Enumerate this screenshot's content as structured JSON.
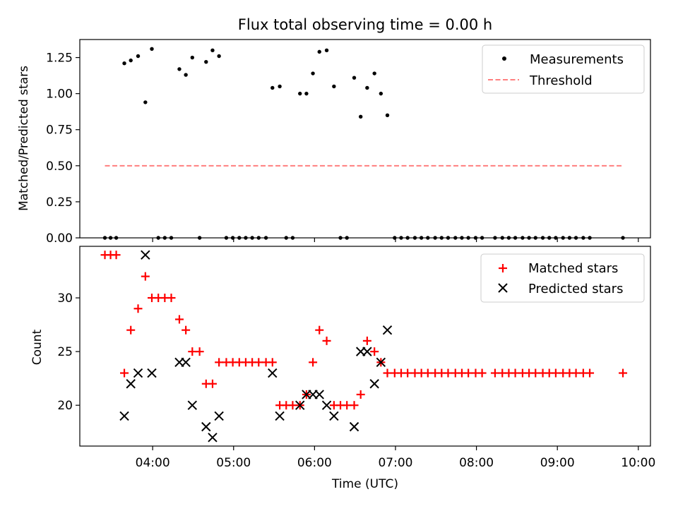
{
  "chart_data": [
    {
      "type": "scatter",
      "title": "Flux total observing time = 0.00 h",
      "ylabel": "Matched/Predicted stars",
      "xlabel": "",
      "ylim": [
        0,
        1.375
      ],
      "xlim": [
        3.1,
        10.15
      ],
      "x_ticks": [
        4,
        5,
        6,
        7,
        8,
        9,
        10
      ],
      "y_ticks": [
        0,
        0.25,
        0.5,
        0.75,
        1.0,
        1.25
      ],
      "y_tick_labels": [
        "0.00",
        "0.25",
        "0.50",
        "0.75",
        "1.00",
        "1.25"
      ],
      "grid": false,
      "legend": "top-right",
      "series": [
        {
          "name": "Measurements",
          "marker": "dot",
          "color": "#000000",
          "x": [
            3.41,
            3.48,
            3.55,
            3.65,
            3.73,
            3.82,
            3.91,
            3.99,
            4.07,
            4.15,
            4.23,
            4.33,
            4.41,
            4.49,
            4.58,
            4.66,
            4.74,
            4.82,
            4.91,
            4.99,
            5.07,
            5.15,
            5.23,
            5.31,
            5.4,
            5.48,
            5.57,
            5.65,
            5.73,
            5.82,
            5.9,
            5.98,
            6.06,
            6.15,
            6.24,
            6.32,
            6.4,
            6.49,
            6.57,
            6.65,
            6.74,
            6.82,
            6.9,
            6.99,
            7.07,
            7.15,
            7.24,
            7.32,
            7.4,
            7.49,
            7.57,
            7.65,
            7.74,
            7.82,
            7.9,
            7.99,
            8.07,
            8.23,
            8.32,
            8.4,
            8.48,
            8.57,
            8.65,
            8.73,
            8.82,
            8.9,
            8.98,
            9.07,
            9.15,
            9.23,
            9.32,
            9.4,
            9.81
          ],
          "y": [
            0,
            0,
            0,
            1.21,
            1.23,
            1.26,
            0.94,
            1.31,
            0,
            0,
            0,
            1.17,
            1.13,
            1.25,
            0,
            1.22,
            1.3,
            1.26,
            0,
            0,
            0,
            0,
            0,
            0,
            0,
            1.04,
            1.05,
            0,
            0,
            1.0,
            1.0,
            1.14,
            1.29,
            1.3,
            1.05,
            0,
            0,
            1.11,
            0.84,
            1.04,
            1.14,
            1.0,
            0.85,
            0,
            0,
            0,
            0,
            0,
            0,
            0,
            0,
            0,
            0,
            0,
            0,
            0,
            0,
            0,
            0,
            0,
            0,
            0,
            0,
            0,
            0,
            0,
            0,
            0,
            0,
            0,
            0,
            0,
            0
          ]
        },
        {
          "name": "Threshold",
          "style": "dashed",
          "color": "#ff7f7f",
          "x": [
            3.41,
            9.81
          ],
          "y": [
            0.5,
            0.5
          ]
        }
      ]
    },
    {
      "type": "scatter",
      "title": "",
      "ylabel": "Count",
      "xlabel": "Time (UTC)",
      "ylim": [
        16.2,
        34.8
      ],
      "xlim": [
        3.1,
        10.15
      ],
      "x_ticks": [
        4,
        5,
        6,
        7,
        8,
        9,
        10
      ],
      "x_tick_labels": [
        "04:00",
        "05:00",
        "06:00",
        "07:00",
        "08:00",
        "09:00",
        "10:00"
      ],
      "y_ticks": [
        20,
        25,
        30
      ],
      "y_tick_labels": [
        "20",
        "25",
        "30"
      ],
      "grid": false,
      "legend": "top-right",
      "series": [
        {
          "name": "Matched stars",
          "marker": "plus",
          "color": "#ff0000",
          "x": [
            3.41,
            3.48,
            3.55,
            3.65,
            3.73,
            3.82,
            3.91,
            3.99,
            4.07,
            4.15,
            4.23,
            4.33,
            4.41,
            4.49,
            4.58,
            4.66,
            4.74,
            4.82,
            4.91,
            4.99,
            5.07,
            5.15,
            5.23,
            5.31,
            5.4,
            5.48,
            5.57,
            5.65,
            5.73,
            5.82,
            5.9,
            5.98,
            6.06,
            6.15,
            6.24,
            6.32,
            6.4,
            6.49,
            6.57,
            6.65,
            6.74,
            6.82,
            6.9,
            6.99,
            7.07,
            7.15,
            7.24,
            7.32,
            7.4,
            7.49,
            7.57,
            7.65,
            7.74,
            7.82,
            7.9,
            7.99,
            8.07,
            8.23,
            8.32,
            8.4,
            8.48,
            8.57,
            8.65,
            8.73,
            8.82,
            8.9,
            8.98,
            9.07,
            9.15,
            9.23,
            9.32,
            9.4,
            9.81
          ],
          "y": [
            34,
            34,
            34,
            23,
            27,
            29,
            32,
            30,
            30,
            30,
            30,
            28,
            27,
            25,
            25,
            22,
            22,
            24,
            24,
            24,
            24,
            24,
            24,
            24,
            24,
            24,
            20,
            20,
            20,
            20,
            21,
            24,
            27,
            26,
            20,
            20,
            20,
            20,
            21,
            26,
            25,
            24,
            23,
            23,
            23,
            23,
            23,
            23,
            23,
            23,
            23,
            23,
            23,
            23,
            23,
            23,
            23,
            23,
            23,
            23,
            23,
            23,
            23,
            23,
            23,
            23,
            23,
            23,
            23,
            23,
            23,
            23,
            23
          ]
        },
        {
          "name": "Predicted stars",
          "marker": "x",
          "color": "#000000",
          "x": [
            3.65,
            3.73,
            3.82,
            3.91,
            3.99,
            4.33,
            4.41,
            4.49,
            4.66,
            4.74,
            4.82,
            5.48,
            5.57,
            5.82,
            5.9,
            5.98,
            6.06,
            6.15,
            6.24,
            6.49,
            6.57,
            6.65,
            6.74,
            6.82,
            6.9
          ],
          "y": [
            19,
            22,
            23,
            34,
            23,
            24,
            24,
            20,
            18,
            17,
            19,
            23,
            19,
            20,
            21,
            21,
            21,
            20,
            19,
            18,
            25,
            25,
            22,
            24,
            27
          ]
        }
      ]
    }
  ]
}
